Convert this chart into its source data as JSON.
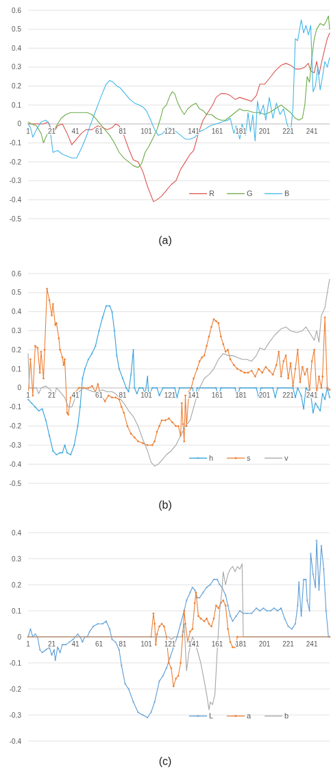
{
  "chart_data": [
    {
      "type": "line",
      "title": "(a)",
      "xlim": [
        1,
        256
      ],
      "xticks": [
        1,
        21,
        41,
        61,
        81,
        101,
        121,
        141,
        161,
        181,
        201,
        221,
        241
      ],
      "ylim": [
        -0.5,
        0.6
      ],
      "yticks": [
        {
          "value": -0.5,
          "label": "-0.5"
        },
        {
          "value": -0.4,
          "label": "-0.4"
        },
        {
          "value": -0.3,
          "label": "-0.3"
        },
        {
          "value": -0.2,
          "label": "-0.2"
        },
        {
          "value": -0.1,
          "label": "-0.1"
        },
        {
          "value": 0,
          "label": "0"
        },
        {
          "value": 0.1,
          "label": "0.1"
        },
        {
          "value": 0.2,
          "label": "0.2"
        },
        {
          "value": 0.3,
          "label": "0.3"
        },
        {
          "value": 0.4,
          "label": "0.4"
        },
        {
          "value": 0.5,
          "label": "0.5"
        },
        {
          "value": 0.6,
          "label": "0.6"
        }
      ],
      "grid": "y",
      "legend": "bottom right",
      "series": [
        {
          "name": "R",
          "color": "#d9534f",
          "x": [
            1,
            5,
            10,
            14,
            18,
            22,
            26,
            30,
            34,
            38,
            42,
            46,
            50,
            55,
            60,
            64,
            68,
            72,
            75,
            78,
            82,
            86,
            90,
            94,
            98,
            102,
            107,
            110,
            114,
            118,
            122,
            126,
            130,
            134,
            138,
            141,
            145,
            149,
            153,
            157,
            160,
            164,
            168,
            172,
            176,
            180,
            185,
            190,
            194,
            197,
            201,
            205,
            210,
            215,
            219,
            223,
            227,
            231,
            235,
            238,
            240,
            243,
            245,
            247,
            249,
            252,
            254,
            256
          ],
          "values": [
            0,
            0,
            0,
            0,
            0.01,
            -0.05,
            -0.01,
            0,
            -0.05,
            -0.11,
            -0.08,
            -0.05,
            -0.03,
            -0.03,
            -0.01,
            -0.02,
            -0.03,
            -0.02,
            0,
            -0.01,
            -0.06,
            -0.13,
            -0.19,
            -0.2,
            -0.25,
            -0.33,
            -0.41,
            -0.4,
            -0.38,
            -0.35,
            -0.32,
            -0.3,
            -0.24,
            -0.2,
            -0.16,
            -0.14,
            -0.05,
            0.02,
            0.06,
            0.1,
            0.14,
            0.16,
            0.16,
            0.15,
            0.13,
            0.14,
            0.13,
            0.12,
            0.15,
            0.21,
            0.21,
            0.24,
            0.28,
            0.31,
            0.32,
            0.31,
            0.29,
            0.29,
            0.3,
            0.32,
            0.28,
            0.27,
            0.33,
            0.26,
            0.32,
            0.4,
            0.45,
            0.48
          ]
        },
        {
          "name": "G",
          "color": "#6aaa45",
          "x": [
            1,
            4,
            8,
            12,
            14,
            16,
            19,
            22,
            25,
            29,
            33,
            37,
            42,
            46,
            51,
            55,
            58,
            62,
            66,
            70,
            74,
            78,
            82,
            86,
            90,
            94,
            97,
            100,
            103,
            107,
            110,
            113,
            115,
            118,
            121,
            123,
            125,
            127,
            130,
            133,
            136,
            140,
            143,
            146,
            149,
            152,
            156,
            160,
            164,
            168,
            172,
            176,
            180,
            183,
            187,
            192,
            197,
            201,
            205,
            210,
            215,
            219,
            223,
            227,
            230,
            233,
            235,
            237,
            239,
            241,
            243,
            245,
            248,
            251,
            253,
            255,
            256
          ],
          "values": [
            0.01,
            0,
            -0.01,
            -0.05,
            -0.1,
            -0.07,
            -0.03,
            -0.05,
            -0.01,
            0.03,
            0.05,
            0.06,
            0.06,
            0.06,
            0.06,
            0.05,
            0.03,
            0,
            -0.03,
            -0.06,
            -0.1,
            -0.15,
            -0.18,
            -0.2,
            -0.22,
            -0.23,
            -0.21,
            -0.15,
            -0.12,
            -0.07,
            -0.03,
            0.03,
            0.08,
            0.1,
            0.15,
            0.17,
            0.16,
            0.12,
            0.08,
            0.05,
            0.08,
            0.1,
            0.11,
            0.08,
            0.07,
            0.05,
            0.05,
            0.03,
            0.02,
            0.02,
            0.04,
            0.06,
            0.08,
            0.07,
            0.07,
            0.06,
            0.06,
            0.05,
            0.06,
            0.08,
            0.1,
            0.08,
            0.06,
            0.03,
            0.02,
            0.03,
            0.1,
            0.25,
            0.22,
            0.35,
            0.45,
            0.5,
            0.53,
            0.52,
            0.54,
            0.57,
            0.5
          ]
        },
        {
          "name": "B",
          "color": "#3fb6e8",
          "x": [
            1,
            3,
            5,
            8,
            12,
            16,
            19,
            22,
            26,
            30,
            34,
            38,
            42,
            46,
            50,
            54,
            57,
            60,
            63,
            67,
            70,
            73,
            76,
            79,
            83,
            87,
            91,
            95,
            98,
            101,
            104,
            108,
            111,
            115,
            119,
            122,
            126,
            130,
            134,
            138,
            142,
            146,
            150,
            155,
            160,
            165,
            170,
            172,
            175,
            177,
            180,
            182,
            185,
            187,
            189,
            191,
            193,
            195,
            197,
            200,
            202,
            205,
            208,
            211,
            214,
            217,
            220,
            223,
            225,
            227,
            229,
            232,
            234,
            236,
            238,
            240,
            242,
            244,
            246,
            248,
            250,
            252,
            254,
            256
          ],
          "values": [
            0,
            -0.02,
            -0.07,
            -0.03,
            0.01,
            0.02,
            0,
            -0.15,
            -0.14,
            -0.16,
            -0.17,
            -0.18,
            -0.18,
            -0.13,
            -0.07,
            0,
            0.05,
            0.1,
            0.15,
            0.21,
            0.23,
            0.22,
            0.2,
            0.19,
            0.16,
            0.13,
            0.11,
            0.1,
            0.09,
            0.07,
            0.03,
            -0.03,
            -0.06,
            -0.05,
            -0.02,
            -0.02,
            -0.04,
            -0.06,
            -0.08,
            -0.08,
            -0.07,
            -0.04,
            -0.03,
            -0.01,
            0,
            0.01,
            0.02,
            0.03,
            -0.05,
            -0.01,
            -0.08,
            0,
            -0.06,
            0.06,
            -0.04,
            0.05,
            -0.09,
            0.12,
            0.05,
            0.1,
            0.02,
            0.14,
            0.03,
            0.11,
            0.05,
            0.08,
            0,
            -0.05,
            0.09,
            0.45,
            0.44,
            0.55,
            0.48,
            0.52,
            0.47,
            0.52,
            0.17,
            0.2,
            0.3,
            0.18,
            0.25,
            0.33,
            0.3,
            0.35
          ]
        }
      ]
    },
    {
      "type": "line",
      "title": "(b)",
      "xlim": [
        1,
        256
      ],
      "xticks": [
        1,
        21,
        41,
        61,
        81,
        101,
        121,
        141,
        161,
        181,
        201,
        221,
        241
      ],
      "ylim": [
        -0.5,
        0.6
      ],
      "yticks": [
        {
          "value": -0.5,
          "label": "-0.5"
        },
        {
          "value": -0.4,
          "label": "-0.4"
        },
        {
          "value": -0.3,
          "label": "-0.3"
        },
        {
          "value": -0.2,
          "label": "-0.2"
        },
        {
          "value": -0.1,
          "label": "-0.1"
        },
        {
          "value": 0,
          "label": "0"
        },
        {
          "value": 0.1,
          "label": "0.1"
        },
        {
          "value": 0.2,
          "label": "0.2"
        },
        {
          "value": 0.3,
          "label": "0.3"
        },
        {
          "value": 0.4,
          "label": "0.4"
        },
        {
          "value": 0.5,
          "label": "0.5"
        },
        {
          "value": 0.6,
          "label": "0.6"
        }
      ],
      "grid": "y",
      "legend": "bottom right",
      "series": [
        {
          "name": "h",
          "color": "#2e9fdc",
          "marker": "cross",
          "x": [
            1,
            4,
            7,
            10,
            13,
            16,
            19,
            22,
            25,
            28,
            30,
            32,
            34,
            37,
            40,
            43,
            45,
            47,
            49,
            52,
            55,
            58,
            61,
            64,
            67,
            70,
            72,
            74,
            76,
            78,
            81,
            84,
            86,
            88,
            90,
            91,
            93,
            95,
            98,
            100,
            102,
            103,
            106,
            110,
            112,
            115,
            125,
            127,
            129,
            140,
            142,
            144,
            160,
            162,
            164,
            176,
            178,
            180,
            194,
            196,
            198,
            208,
            210,
            212,
            225,
            227,
            229,
            232,
            234,
            236,
            240,
            242,
            244,
            246,
            248,
            250,
            252,
            254,
            256
          ],
          "values": [
            -0.06,
            -0.08,
            -0.1,
            -0.12,
            -0.11,
            -0.17,
            -0.25,
            -0.33,
            -0.35,
            -0.34,
            -0.34,
            -0.3,
            -0.34,
            -0.35,
            -0.3,
            -0.2,
            -0.1,
            0.05,
            0.1,
            0.15,
            0.18,
            0.22,
            0.3,
            0.37,
            0.43,
            0.43,
            0.4,
            0.3,
            0.17,
            0.1,
            0.05,
            0,
            -0.02,
            0.07,
            0.2,
            0,
            -0.03,
            0,
            0,
            -0.03,
            0.06,
            -0.05,
            0,
            0,
            -0.04,
            0,
            0,
            -0.05,
            0,
            0,
            -0.05,
            0,
            0,
            -0.05,
            0,
            0,
            -0.05,
            0,
            0,
            -0.05,
            0,
            0,
            -0.05,
            0,
            0,
            -0.05,
            0,
            -0.04,
            -0.11,
            0,
            -0.03,
            -0.13,
            -0.08,
            -0.1,
            -0.12,
            -0.03,
            -0.06,
            0,
            -0.05
          ]
        },
        {
          "name": "s",
          "color": "#ed7d31",
          "marker": "circle",
          "x": [
            1,
            3,
            5,
            7,
            9,
            11,
            12,
            14,
            15,
            17,
            19,
            21,
            22,
            24,
            25,
            27,
            28,
            30,
            31,
            32,
            34,
            35,
            37,
            40,
            44,
            48,
            52,
            55,
            58,
            60,
            62,
            64,
            66,
            69,
            72,
            75,
            78,
            80,
            82,
            85,
            88,
            91,
            94,
            98,
            102,
            106,
            108,
            110,
            112,
            114,
            117,
            120,
            123,
            126,
            128,
            130,
            131,
            132,
            133,
            134,
            135,
            137,
            139,
            141,
            144,
            146,
            148,
            150,
            152,
            154,
            156,
            158,
            160,
            162,
            164,
            166,
            168,
            170,
            172,
            175,
            178,
            181,
            184,
            187,
            190,
            193,
            196,
            199,
            202,
            205,
            208,
            211,
            213,
            215,
            217,
            219,
            221,
            223,
            225,
            227,
            229,
            231,
            233,
            235,
            237,
            239,
            241,
            243,
            245,
            247,
            249,
            250,
            252,
            254,
            256
          ],
          "values": [
            -0.05,
            0.15,
            -0.04,
            0.22,
            0.21,
            0.08,
            0.19,
            0.05,
            0.2,
            0.52,
            0.46,
            0.38,
            0.44,
            0.33,
            0.34,
            0.26,
            0.2,
            0.16,
            0.12,
            0.15,
            -0.13,
            -0.14,
            -0.05,
            -0.03,
            0,
            0,
            0,
            0.01,
            -0.02,
            0.02,
            -0.03,
            -0.05,
            -0.07,
            -0.04,
            -0.05,
            -0.05,
            -0.06,
            -0.1,
            -0.13,
            -0.2,
            -0.24,
            -0.26,
            -0.28,
            -0.29,
            -0.3,
            -0.3,
            -0.28,
            -0.23,
            -0.2,
            -0.17,
            -0.17,
            -0.16,
            -0.18,
            -0.2,
            -0.2,
            -0.25,
            -0.08,
            -0.19,
            -0.28,
            -0.04,
            -0.2,
            -0.02,
            0,
            0.05,
            0.1,
            0.14,
            0.16,
            0.17,
            0.22,
            0.27,
            0.32,
            0.36,
            0.35,
            0.34,
            0.27,
            0.23,
            0.19,
            0.2,
            0.15,
            0.12,
            0.1,
            0.09,
            0.08,
            0.08,
            0.09,
            0.06,
            0.1,
            0.08,
            0.11,
            0.09,
            0.07,
            0.12,
            0.19,
            0.06,
            0.14,
            0.17,
            0.05,
            0.13,
            0.01,
            0.1,
            0.2,
            0.03,
            0.11,
            0.07,
            0.1,
            -0.01,
            0.14,
            0.2,
            -0.03,
            0.06,
            0,
            0.06,
            0.37,
            0,
            -0.01
          ]
        },
        {
          "name": "v",
          "color": "#a5a5a5",
          "x": [
            1,
            2,
            5,
            8,
            10,
            12,
            16,
            20,
            23,
            25,
            28,
            32,
            35,
            38,
            41,
            44,
            48,
            52,
            56,
            60,
            64,
            68,
            72,
            75,
            78,
            82,
            86,
            90,
            94,
            98,
            102,
            105,
            108,
            111,
            114,
            118,
            122,
            126,
            130,
            134,
            138,
            142,
            146,
            150,
            154,
            158,
            162,
            166,
            170,
            174,
            178,
            182,
            186,
            190,
            194,
            197,
            201,
            205,
            210,
            215,
            219,
            223,
            228,
            233,
            236,
            240,
            243,
            245,
            247,
            249,
            252,
            254,
            256
          ],
          "values": [
            0.18,
            0,
            0,
            0,
            -0.03,
            0,
            0.01,
            -0.01,
            -0.05,
            0,
            -0.02,
            -0.05,
            -0.1,
            -0.1,
            -0.05,
            -0.02,
            0,
            -0.01,
            -0.02,
            -0.02,
            -0.01,
            -0.02,
            -0.02,
            -0.03,
            -0.05,
            -0.08,
            -0.12,
            -0.15,
            -0.2,
            -0.27,
            -0.33,
            -0.39,
            -0.41,
            -0.4,
            -0.38,
            -0.35,
            -0.33,
            -0.3,
            -0.25,
            -0.2,
            -0.17,
            -0.08,
            0,
            0.05,
            0.07,
            0.1,
            0.15,
            0.18,
            0.17,
            0.17,
            0.16,
            0.15,
            0.15,
            0.14,
            0.17,
            0.21,
            0.2,
            0.24,
            0.28,
            0.31,
            0.32,
            0.3,
            0.29,
            0.3,
            0.32,
            0.28,
            0.25,
            0.3,
            0.24,
            0.38,
            0.42,
            0.5,
            0.57
          ]
        }
      ]
    },
    {
      "type": "line",
      "title": "(c)",
      "xlim": [
        1,
        256
      ],
      "xticks": [
        1,
        21,
        41,
        61,
        81,
        101,
        121,
        141,
        161,
        181,
        201,
        221,
        241
      ],
      "ylim": [
        -0.4,
        0.4
      ],
      "yticks": [
        {
          "value": -0.4,
          "label": "-0.4"
        },
        {
          "value": -0.3,
          "label": "-0.3"
        },
        {
          "value": -0.2,
          "label": "-0.2"
        },
        {
          "value": -0.1,
          "label": "-0.1"
        },
        {
          "value": 0,
          "label": "0"
        },
        {
          "value": 0.1,
          "label": "0.1"
        },
        {
          "value": 0.2,
          "label": "0.2"
        },
        {
          "value": 0.3,
          "label": "0.3"
        },
        {
          "value": 0.4,
          "label": "0.4"
        }
      ],
      "grid": "y",
      "legend": "bottom right",
      "series": [
        {
          "name": "L",
          "color": "#5b9bd5",
          "marker": "cross",
          "x": [
            1,
            3,
            5,
            7,
            9,
            11,
            13,
            16,
            19,
            21,
            23,
            24,
            26,
            28,
            30,
            33,
            36,
            39,
            41,
            43,
            45,
            47,
            49,
            51,
            53,
            56,
            60,
            64,
            67,
            70,
            72,
            75,
            78,
            80,
            83,
            86,
            90,
            94,
            98,
            102,
            105,
            108,
            112,
            115,
            118,
            121,
            124,
            127,
            130,
            133,
            135,
            138,
            140,
            142,
            144,
            146,
            149,
            152,
            155,
            158,
            161,
            163,
            165,
            168,
            170,
            172,
            174,
            177,
            180,
            183,
            186,
            190,
            194,
            197,
            200,
            203,
            206,
            209,
            212,
            215,
            218,
            221,
            224,
            227,
            229,
            230,
            232,
            234,
            236,
            237,
            239,
            240,
            242,
            244,
            245,
            247,
            249,
            251,
            253,
            255
          ],
          "values": [
            0,
            0.03,
            0,
            0.01,
            0,
            -0.05,
            -0.06,
            -0.05,
            -0.04,
            -0.07,
            -0.05,
            -0.09,
            -0.04,
            -0.06,
            -0.03,
            -0.03,
            -0.02,
            -0.01,
            0,
            0.01,
            0,
            -0.02,
            0,
            0,
            0.02,
            0.04,
            0.05,
            0.05,
            0.06,
            0.03,
            -0.01,
            -0.02,
            -0.05,
            -0.11,
            -0.18,
            -0.2,
            -0.25,
            -0.29,
            -0.3,
            -0.31,
            -0.29,
            -0.25,
            -0.17,
            -0.15,
            -0.12,
            -0.08,
            -0.04,
            0,
            0.05,
            0.1,
            0.14,
            0.17,
            0.19,
            0.18,
            0.15,
            0.15,
            0.17,
            0.19,
            0.2,
            0.22,
            0.22,
            0.2,
            0.19,
            0.16,
            0.12,
            0.08,
            0.06,
            0.08,
            0.1,
            0.09,
            0.09,
            0.09,
            0.11,
            0.1,
            0.11,
            0.1,
            0.1,
            0.11,
            0.1,
            0.11,
            0.07,
            0.04,
            0.03,
            0.05,
            0.12,
            0.21,
            0.08,
            0.22,
            0.22,
            0.14,
            0.1,
            0.32,
            0.24,
            0.19,
            0.37,
            0.18,
            0.35,
            0.26,
            0.1,
            0
          ]
        },
        {
          "name": "a",
          "color": "#ed7d31",
          "marker": "circle",
          "x": [
            1,
            105,
            107,
            108,
            109,
            110,
            112,
            114,
            116,
            118,
            120,
            122,
            124,
            126,
            128,
            130,
            132,
            133,
            134,
            136,
            138,
            140,
            142,
            143,
            145,
            147,
            150,
            152,
            154,
            156,
            158,
            160,
            162,
            164,
            166,
            168,
            170,
            172,
            174,
            176,
            178,
            256
          ],
          "values": [
            0,
            0,
            0.09,
            0.05,
            -0.03,
            0.01,
            0.04,
            0.05,
            0.04,
            0,
            -0.1,
            -0.12,
            -0.19,
            -0.16,
            -0.15,
            -0.1,
            0.02,
            0.1,
            0.05,
            -0.02,
            0.02,
            0.03,
            0.13,
            0.17,
            0.08,
            0.07,
            0.06,
            0.07,
            0.05,
            0.04,
            0.07,
            0.12,
            0.11,
            0.13,
            0.14,
            0.12,
            0.03,
            -0.02,
            -0.04,
            -0.04,
            0,
            0
          ]
        },
        {
          "name": "b",
          "color": "#a5a5a5",
          "x": [
            1,
            120,
            122,
            125,
            128,
            131,
            133,
            135,
            137,
            140,
            142,
            144,
            147,
            150,
            152,
            154,
            155,
            157,
            159,
            161,
            163,
            165,
            166,
            168,
            170,
            172,
            174,
            176,
            178,
            180,
            182,
            183,
            256
          ],
          "values": [
            0,
            0,
            -0.01,
            0,
            0,
            0,
            0.05,
            -0.13,
            -0.06,
            0,
            -0.02,
            -0.05,
            -0.1,
            -0.17,
            -0.22,
            -0.28,
            -0.25,
            -0.26,
            -0.22,
            -0.05,
            0.1,
            0.18,
            0.25,
            0.2,
            0.24,
            0.26,
            0.27,
            0.25,
            0.27,
            0.26,
            0.28,
            0,
            0
          ]
        }
      ]
    }
  ]
}
